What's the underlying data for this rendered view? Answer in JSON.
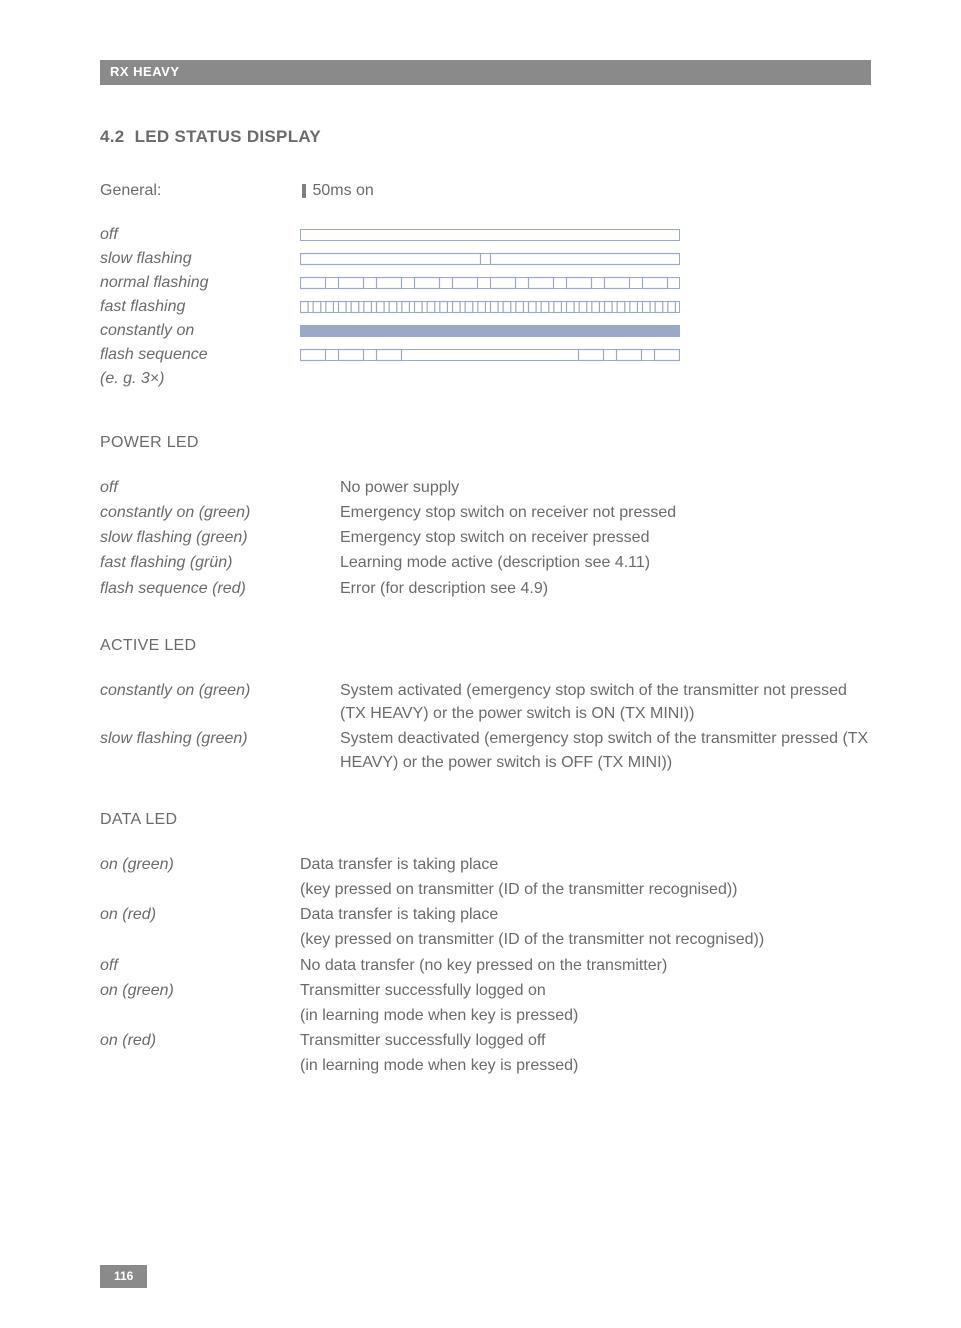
{
  "header": {
    "title": "RX HEAVY"
  },
  "section": {
    "number": "4.2",
    "title": "LED STATUS DISPLAY"
  },
  "general": {
    "label": "General:",
    "legend_label": "50ms on",
    "legend_tick_color": "#808080"
  },
  "patterns": {
    "stroke": "#9aa9c7",
    "fill_solid": "#9aa9c7",
    "fill_off": "#ffffff",
    "rows": [
      {
        "label": "off",
        "segments": []
      },
      {
        "label": "slow flashing",
        "segments": [
          [
            0,
            180
          ],
          [
            190,
            380
          ]
        ]
      },
      {
        "label": "normal flashing",
        "segments": [
          [
            0,
            25
          ],
          [
            38,
            63
          ],
          [
            76,
            101
          ],
          [
            114,
            139
          ],
          [
            152,
            177
          ],
          [
            190,
            215
          ],
          [
            228,
            253
          ],
          [
            266,
            291
          ],
          [
            304,
            329
          ],
          [
            342,
            367
          ]
        ]
      },
      {
        "label": "fast flashing",
        "segments_dense": 30
      },
      {
        "label": "constantly on",
        "segments_fill": true
      },
      {
        "label": "flash sequence",
        "segments": [
          [
            0,
            25
          ],
          [
            38,
            63
          ],
          [
            76,
            101
          ],
          [
            278,
            303
          ],
          [
            316,
            341
          ],
          [
            354,
            379
          ]
        ]
      },
      {
        "label": " (e. g. 3×)",
        "no_bar": true
      }
    ]
  },
  "power_led": {
    "heading": "POWER LED",
    "items": [
      {
        "label": "off",
        "desc": "No power supply"
      },
      {
        "label": "constantly on (green)",
        "desc": "Emergency stop switch on receiver not pressed"
      },
      {
        "label": "slow flashing (green)",
        "desc": "Emergency stop switch on receiver pressed"
      },
      {
        "label": "fast flashing (grün)",
        "desc": "Learning mode active (description see 4.11)"
      },
      {
        "label": "flash sequence (red)",
        "desc": "Error (for description see 4.9)"
      }
    ]
  },
  "active_led": {
    "heading": "ACTIVE LED",
    "items": [
      {
        "label": "constantly on (green)",
        "desc": "System activated (emergency stop switch of the transmitter not pressed (TX HEAVY) or the power switch is ON (TX MINI))"
      },
      {
        "label": "slow flashing (green)",
        "desc": "System deactivated (emergency stop switch of the transmitter pressed (TX HEAVY) or the power switch is OFF (TX MINI))"
      }
    ]
  },
  "data_led": {
    "heading": "DATA LED",
    "items": [
      {
        "label": "on (green)",
        "desc": "Data transfer is taking place\n(key pressed on transmitter (ID of the transmitter recognised))"
      },
      {
        "label": "on (red)",
        "desc": "Data transfer is taking place\n(key pressed on transmitter (ID of the transmitter not recognised))"
      },
      {
        "label": "off",
        "desc": "No data transfer (no key pressed on the transmitter)"
      },
      {
        "label": "on (green)",
        "desc": "Transmitter successfully logged on\n(in learning mode when key is pressed)"
      },
      {
        "label": "on (red)",
        "desc": "Transmitter successfully logged off\n(in learning mode when key is pressed)"
      }
    ]
  },
  "footer": {
    "page": "116"
  }
}
